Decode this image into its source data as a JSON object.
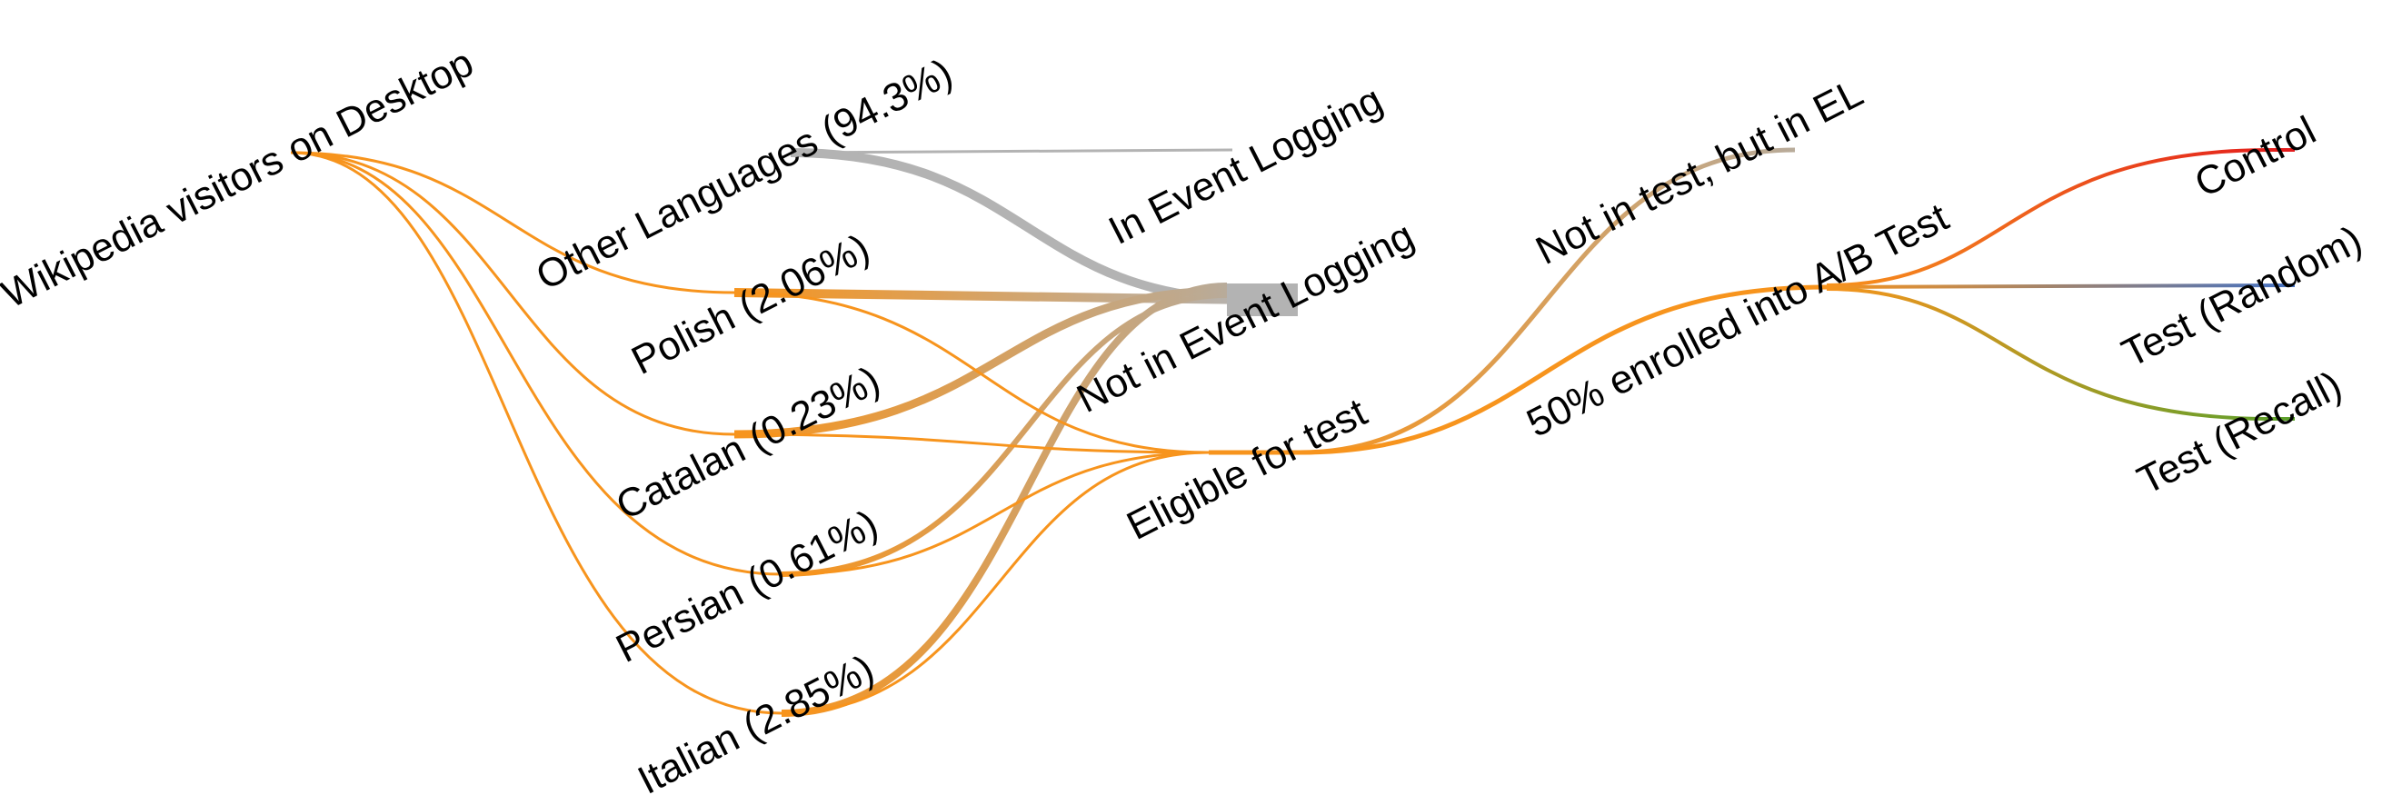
{
  "diagram": {
    "type": "sankey",
    "nodes": [
      {
        "id": "visitors",
        "label": "Wikipedia visitors on Desktop"
      },
      {
        "id": "other",
        "label": "Other Languages (94.3%)"
      },
      {
        "id": "polish",
        "label": "Polish (2.06%)"
      },
      {
        "id": "catalan",
        "label": "Catalan (0.23%)"
      },
      {
        "id": "persian",
        "label": "Persian (0.61%)"
      },
      {
        "id": "italian",
        "label": "Italian (2.85%)"
      },
      {
        "id": "in_el",
        "label": "In Event Logging"
      },
      {
        "id": "not_in_el",
        "label": "Not in Event Logging"
      },
      {
        "id": "eligible",
        "label": "Eligible for test"
      },
      {
        "id": "not_in_test",
        "label": "Not in test, but in EL"
      },
      {
        "id": "enrolled",
        "label": "50% enrolled into A/B Test"
      },
      {
        "id": "control",
        "label": "Control"
      },
      {
        "id": "test_random",
        "label": "Test (Random)"
      },
      {
        "id": "test_recall",
        "label": "Test (Recall)"
      }
    ],
    "links": [
      {
        "source": "visitors",
        "target": "other",
        "value": 94.3
      },
      {
        "source": "visitors",
        "target": "polish",
        "value": 2.06
      },
      {
        "source": "visitors",
        "target": "catalan",
        "value": 0.23
      },
      {
        "source": "visitors",
        "target": "persian",
        "value": 0.61
      },
      {
        "source": "visitors",
        "target": "italian",
        "value": 2.85
      },
      {
        "source": "other",
        "target": "in_el"
      },
      {
        "source": "other",
        "target": "not_in_el"
      },
      {
        "source": "polish",
        "target": "not_in_el"
      },
      {
        "source": "polish",
        "target": "eligible"
      },
      {
        "source": "catalan",
        "target": "not_in_el"
      },
      {
        "source": "catalan",
        "target": "eligible"
      },
      {
        "source": "persian",
        "target": "not_in_el"
      },
      {
        "source": "persian",
        "target": "eligible"
      },
      {
        "source": "italian",
        "target": "not_in_el"
      },
      {
        "source": "italian",
        "target": "eligible"
      },
      {
        "source": "eligible",
        "target": "not_in_test"
      },
      {
        "source": "eligible",
        "target": "enrolled"
      },
      {
        "source": "enrolled",
        "target": "control"
      },
      {
        "source": "enrolled",
        "target": "test_random"
      },
      {
        "source": "enrolled",
        "target": "test_recall"
      }
    ],
    "colors": {
      "orange": "#f7941d",
      "grey": "#b3b3b3",
      "tan": "#c8a878",
      "control": "#e31a1c",
      "random": "#4472c4",
      "recall": "#5aa02c"
    }
  }
}
